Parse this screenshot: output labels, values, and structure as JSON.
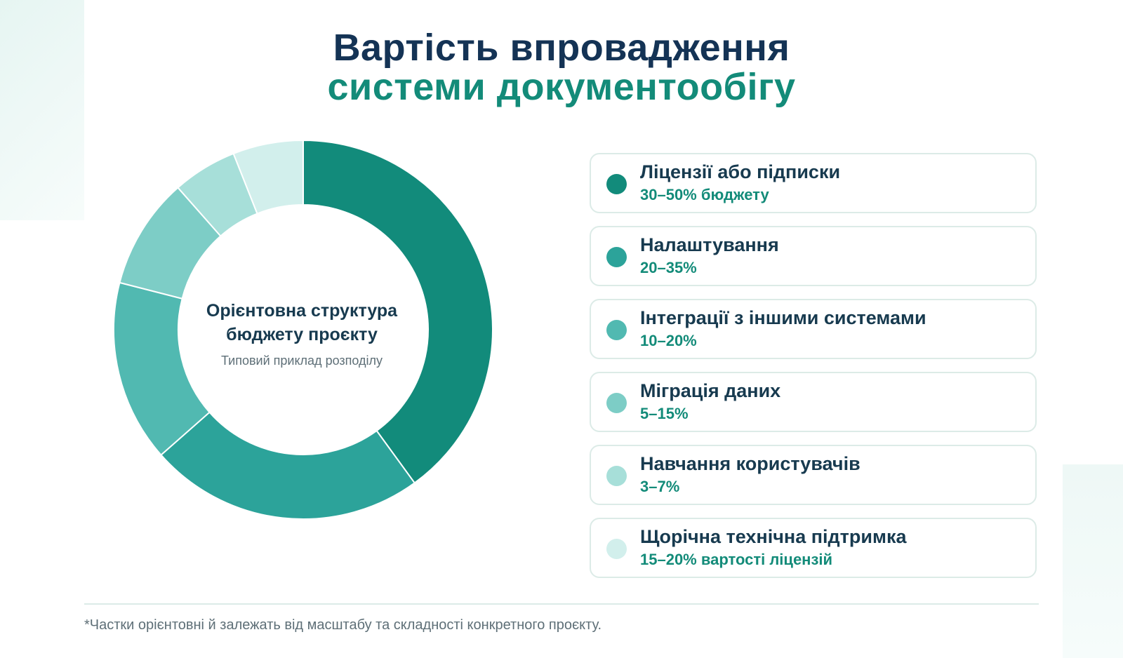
{
  "title": {
    "line1": "Вартість впровадження",
    "line2": "системи документообігу"
  },
  "chart_data": {
    "type": "pie",
    "donut": true,
    "center_title": "Орієнтовна структура бюджету проєкту",
    "center_subtitle": "Типовий приклад розподілу",
    "categories": [
      "Ліцензії або підписки",
      "Налаштування",
      "Інтеграції з іншими системами",
      "Міграція даних",
      "Навчання користувачів",
      "Щорічна технічна підтримка"
    ],
    "values": [
      40,
      23.5,
      15.5,
      9.5,
      5.5,
      6
    ],
    "ranges": [
      "30–50% бюджету",
      "20–35%",
      "10–20%",
      "5–15%",
      "3–7%",
      "15–20% вартості ліцензій"
    ],
    "colors": [
      "#128b7b",
      "#2ca39a",
      "#51b9b1",
      "#7dcdc6",
      "#a7dfd9",
      "#d2efec"
    ],
    "legend_placement": "right"
  },
  "footnote": "*Частки орієнтовні й залежать від масштабу та складності конкретного проєкту."
}
